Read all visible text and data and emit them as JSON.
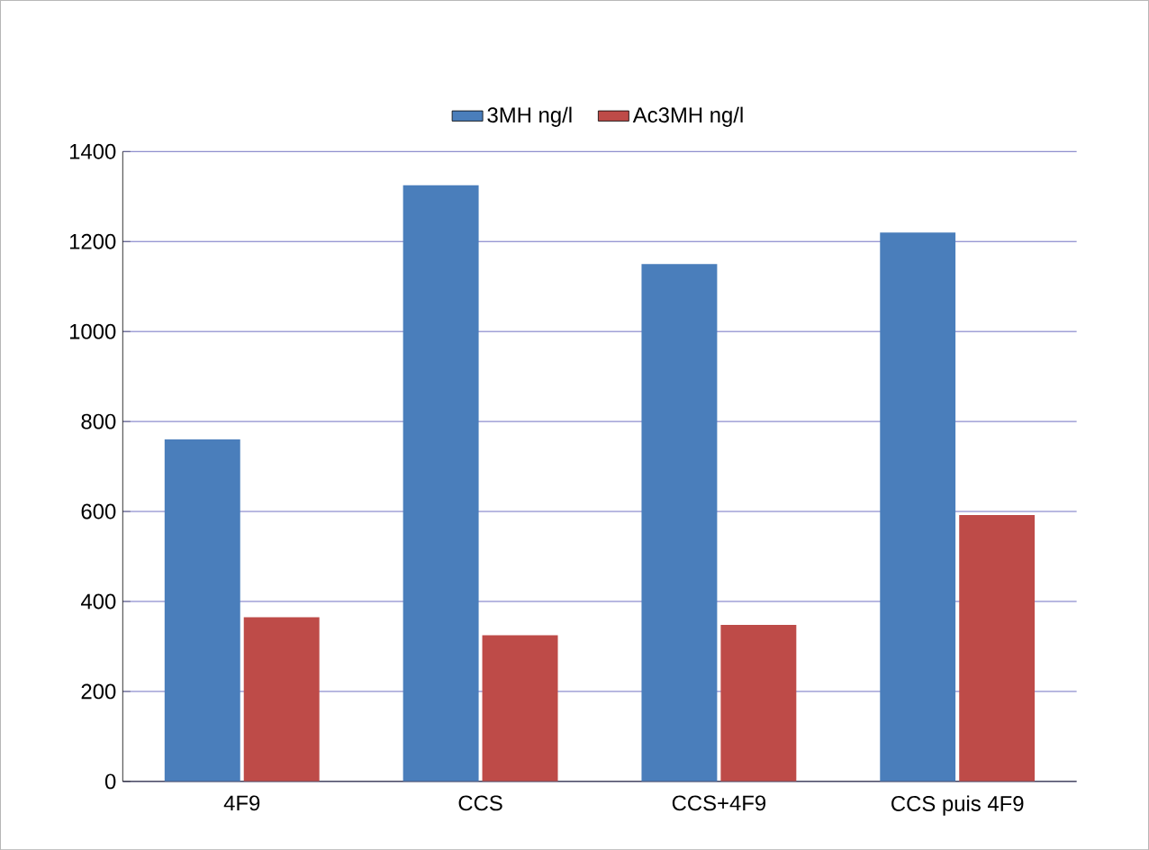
{
  "chart_data": {
    "type": "bar",
    "categories": [
      "4F9",
      "CCS",
      "CCS+4F9",
      "CCS puis 4F9"
    ],
    "series": [
      {
        "name": "3MH ng/l",
        "color": "#4a7ebb",
        "values": [
          760,
          1325,
          1150,
          1220
        ]
      },
      {
        "name": "Ac3MH ng/l",
        "color": "#be4b48",
        "values": [
          365,
          325,
          348,
          592
        ]
      }
    ],
    "ylim": [
      0,
      1400
    ],
    "yticks": [
      0,
      200,
      400,
      600,
      800,
      1000,
      1200,
      1400
    ],
    "grid": "y",
    "legend": "top"
  }
}
